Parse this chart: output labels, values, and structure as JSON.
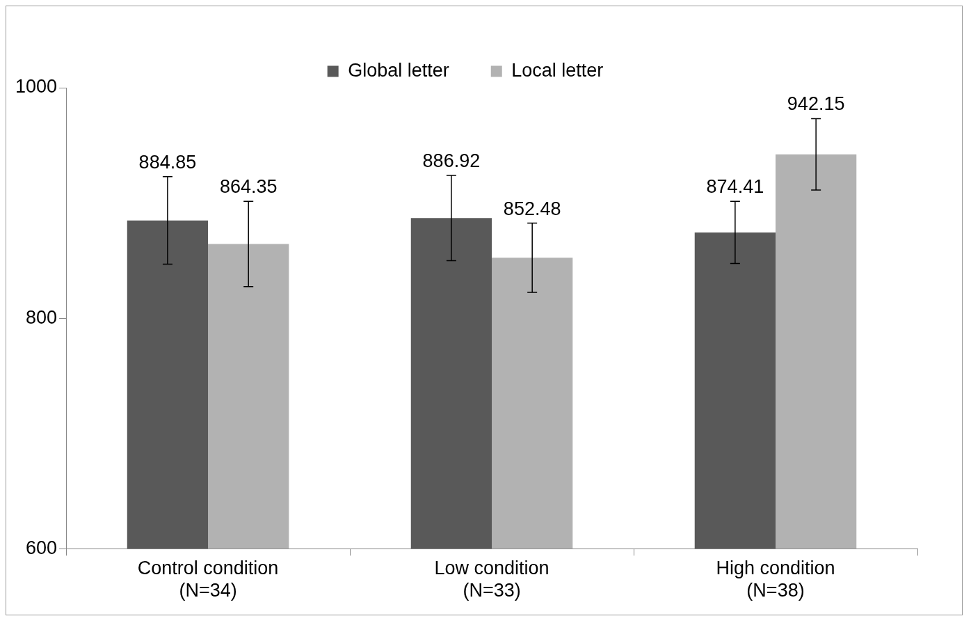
{
  "chart_data": {
    "type": "bar",
    "categories": [
      "Control condition\n(N=34)",
      "Low condition\n(N=33)",
      "High condition\n(N=38)"
    ],
    "series": [
      {
        "name": "Global letter",
        "color": "#595959",
        "values": [
          884.85,
          886.92,
          874.41
        ],
        "errors": [
          38,
          37,
          27
        ]
      },
      {
        "name": "Local letter",
        "color": "#b2b2b2",
        "values": [
          864.35,
          852.48,
          942.15
        ],
        "errors": [
          37,
          30,
          31
        ]
      }
    ],
    "ylim": [
      600,
      1000
    ],
    "yticks": [
      600,
      800,
      1000
    ],
    "grid": false,
    "legend": "top",
    "data_labels": true
  }
}
